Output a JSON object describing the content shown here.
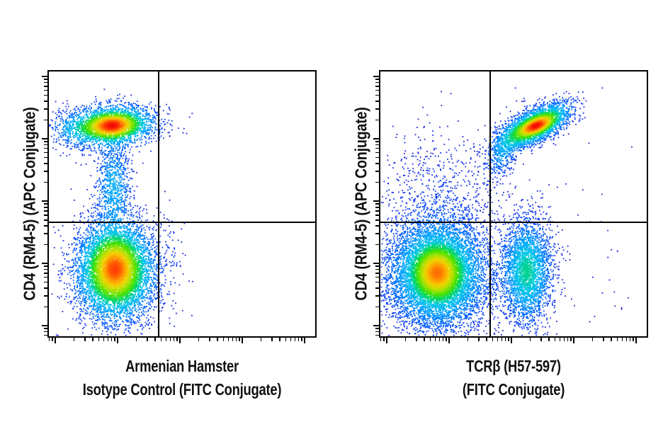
{
  "figure": {
    "background_color": "#ffffff",
    "axis_color": "#000000",
    "label_color": "#111111"
  },
  "chart_data": [
    {
      "type": "scatter",
      "variant": "flow-cytometry-pseudocolor-density-dot-plot",
      "title": "",
      "xlabel_lines": [
        "Armenian Hamster",
        "Isotype Control (FITC Conjugate)"
      ],
      "ylabel": "CD4 (RM4-5) (APC Conjugate)",
      "x_axis": {
        "scale": "log",
        "tick_labels": [],
        "decade_fracs": [
          0.024,
          0.258,
          0.492,
          0.726,
          0.96
        ]
      },
      "y_axis": {
        "scale": "log",
        "tick_labels": [],
        "decade_fracs": [
          0.04,
          0.275,
          0.511,
          0.746,
          0.981
        ]
      },
      "quadrant_gate": {
        "x_frac": 0.411,
        "y_frac": 0.431
      },
      "grid": false,
      "legend": false,
      "seed": 1101,
      "populations": [
        {
          "name": "CD4-positive main cluster (FITC-negative)",
          "center": [
            0.237,
            0.796
          ],
          "sigma": [
            0.085,
            0.04
          ],
          "rho": 0.1,
          "count": 2600
        },
        {
          "name": "CD4-positive dense core",
          "center": [
            0.237,
            0.796
          ],
          "sigma": [
            0.045,
            0.022
          ],
          "rho": 0.1,
          "count": 900
        },
        {
          "name": "CD4-positive left wing",
          "center": [
            0.1,
            0.78
          ],
          "sigma": [
            0.055,
            0.035
          ],
          "rho": 0,
          "count": 300
        },
        {
          "name": "transition tail between quadrants",
          "center": [
            0.243,
            0.57
          ],
          "sigma": [
            0.035,
            0.09
          ],
          "rho": 0,
          "count": 800
        },
        {
          "name": "CD4-negative main blob (FITC-negative)",
          "center": [
            0.25,
            0.248
          ],
          "sigma": [
            0.075,
            0.095
          ],
          "rho": 0,
          "count": 6500
        },
        {
          "name": "CD4-negative dense core",
          "center": [
            0.247,
            0.255
          ],
          "sigma": [
            0.04,
            0.05
          ],
          "rho": 0,
          "count": 1200
        },
        {
          "name": "sparse events right of gate",
          "center": [
            0.47,
            0.3
          ],
          "sigma": [
            0.02,
            0.1
          ],
          "rho": 0,
          "count": 40
        }
      ]
    },
    {
      "type": "scatter",
      "variant": "flow-cytometry-pseudocolor-density-dot-plot",
      "title": "",
      "xlabel_lines": [
        "TCRβ (H57-597)",
        "(FITC Conjugate)"
      ],
      "ylabel": "CD4 (RM4-5) (APC Conjugate)",
      "x_axis": {
        "scale": "log",
        "tick_labels": [],
        "decade_fracs": [
          0.024,
          0.258,
          0.492,
          0.726,
          0.96
        ]
      },
      "y_axis": {
        "scale": "log",
        "tick_labels": [],
        "decade_fracs": [
          0.04,
          0.275,
          0.511,
          0.746,
          0.981
        ]
      },
      "quadrant_gate": {
        "x_frac": 0.411,
        "y_frac": 0.431
      },
      "grid": false,
      "legend": false,
      "seed": 2202,
      "populations": [
        {
          "name": "CD4+ TCRβ+ double-positive cluster",
          "center": [
            0.582,
            0.795
          ],
          "sigma": [
            0.065,
            0.042
          ],
          "rho": 0.65,
          "count": 2800
        },
        {
          "name": "double-positive dense core",
          "center": [
            0.585,
            0.795
          ],
          "sigma": [
            0.032,
            0.018
          ],
          "rho": 0.6,
          "count": 500
        },
        {
          "name": "double-positive tail toward gate corner",
          "center": [
            0.46,
            0.7
          ],
          "sigma": [
            0.035,
            0.055
          ],
          "rho": 0.5,
          "count": 450
        },
        {
          "name": "CD4+ TCRβ- sparse events",
          "center": [
            0.22,
            0.52
          ],
          "sigma": [
            0.12,
            0.13
          ],
          "rho": 0,
          "count": 700
        },
        {
          "name": "CD4- TCRβ- double-negative blob",
          "center": [
            0.216,
            0.235
          ],
          "sigma": [
            0.095,
            0.105
          ],
          "rho": 0,
          "count": 8000
        },
        {
          "name": "double-negative dense core",
          "center": [
            0.213,
            0.24
          ],
          "sigma": [
            0.045,
            0.05
          ],
          "rho": 0,
          "count": 2600
        },
        {
          "name": "CD4- TCRβ+ vertical band",
          "center": [
            0.55,
            0.245
          ],
          "sigma": [
            0.048,
            0.1
          ],
          "rho": 0,
          "count": 3000
        },
        {
          "name": "scattered outliers far right",
          "center": [
            0.82,
            0.35
          ],
          "sigma": [
            0.09,
            0.25
          ],
          "rho": 0,
          "count": 25
        }
      ]
    }
  ],
  "colormap": {
    "gamma": 0.55,
    "stops": [
      [
        0.0,
        "#1e1ed2"
      ],
      [
        0.1,
        "#1638f0"
      ],
      [
        0.22,
        "#0064ff"
      ],
      [
        0.32,
        "#00a0ff"
      ],
      [
        0.42,
        "#00c8e6"
      ],
      [
        0.5,
        "#00d764"
      ],
      [
        0.58,
        "#46e100"
      ],
      [
        0.68,
        "#b4e100"
      ],
      [
        0.76,
        "#f0d200"
      ],
      [
        0.84,
        "#ff9b00"
      ],
      [
        0.92,
        "#ff5000"
      ],
      [
        1.0,
        "#f50a0a"
      ]
    ]
  }
}
